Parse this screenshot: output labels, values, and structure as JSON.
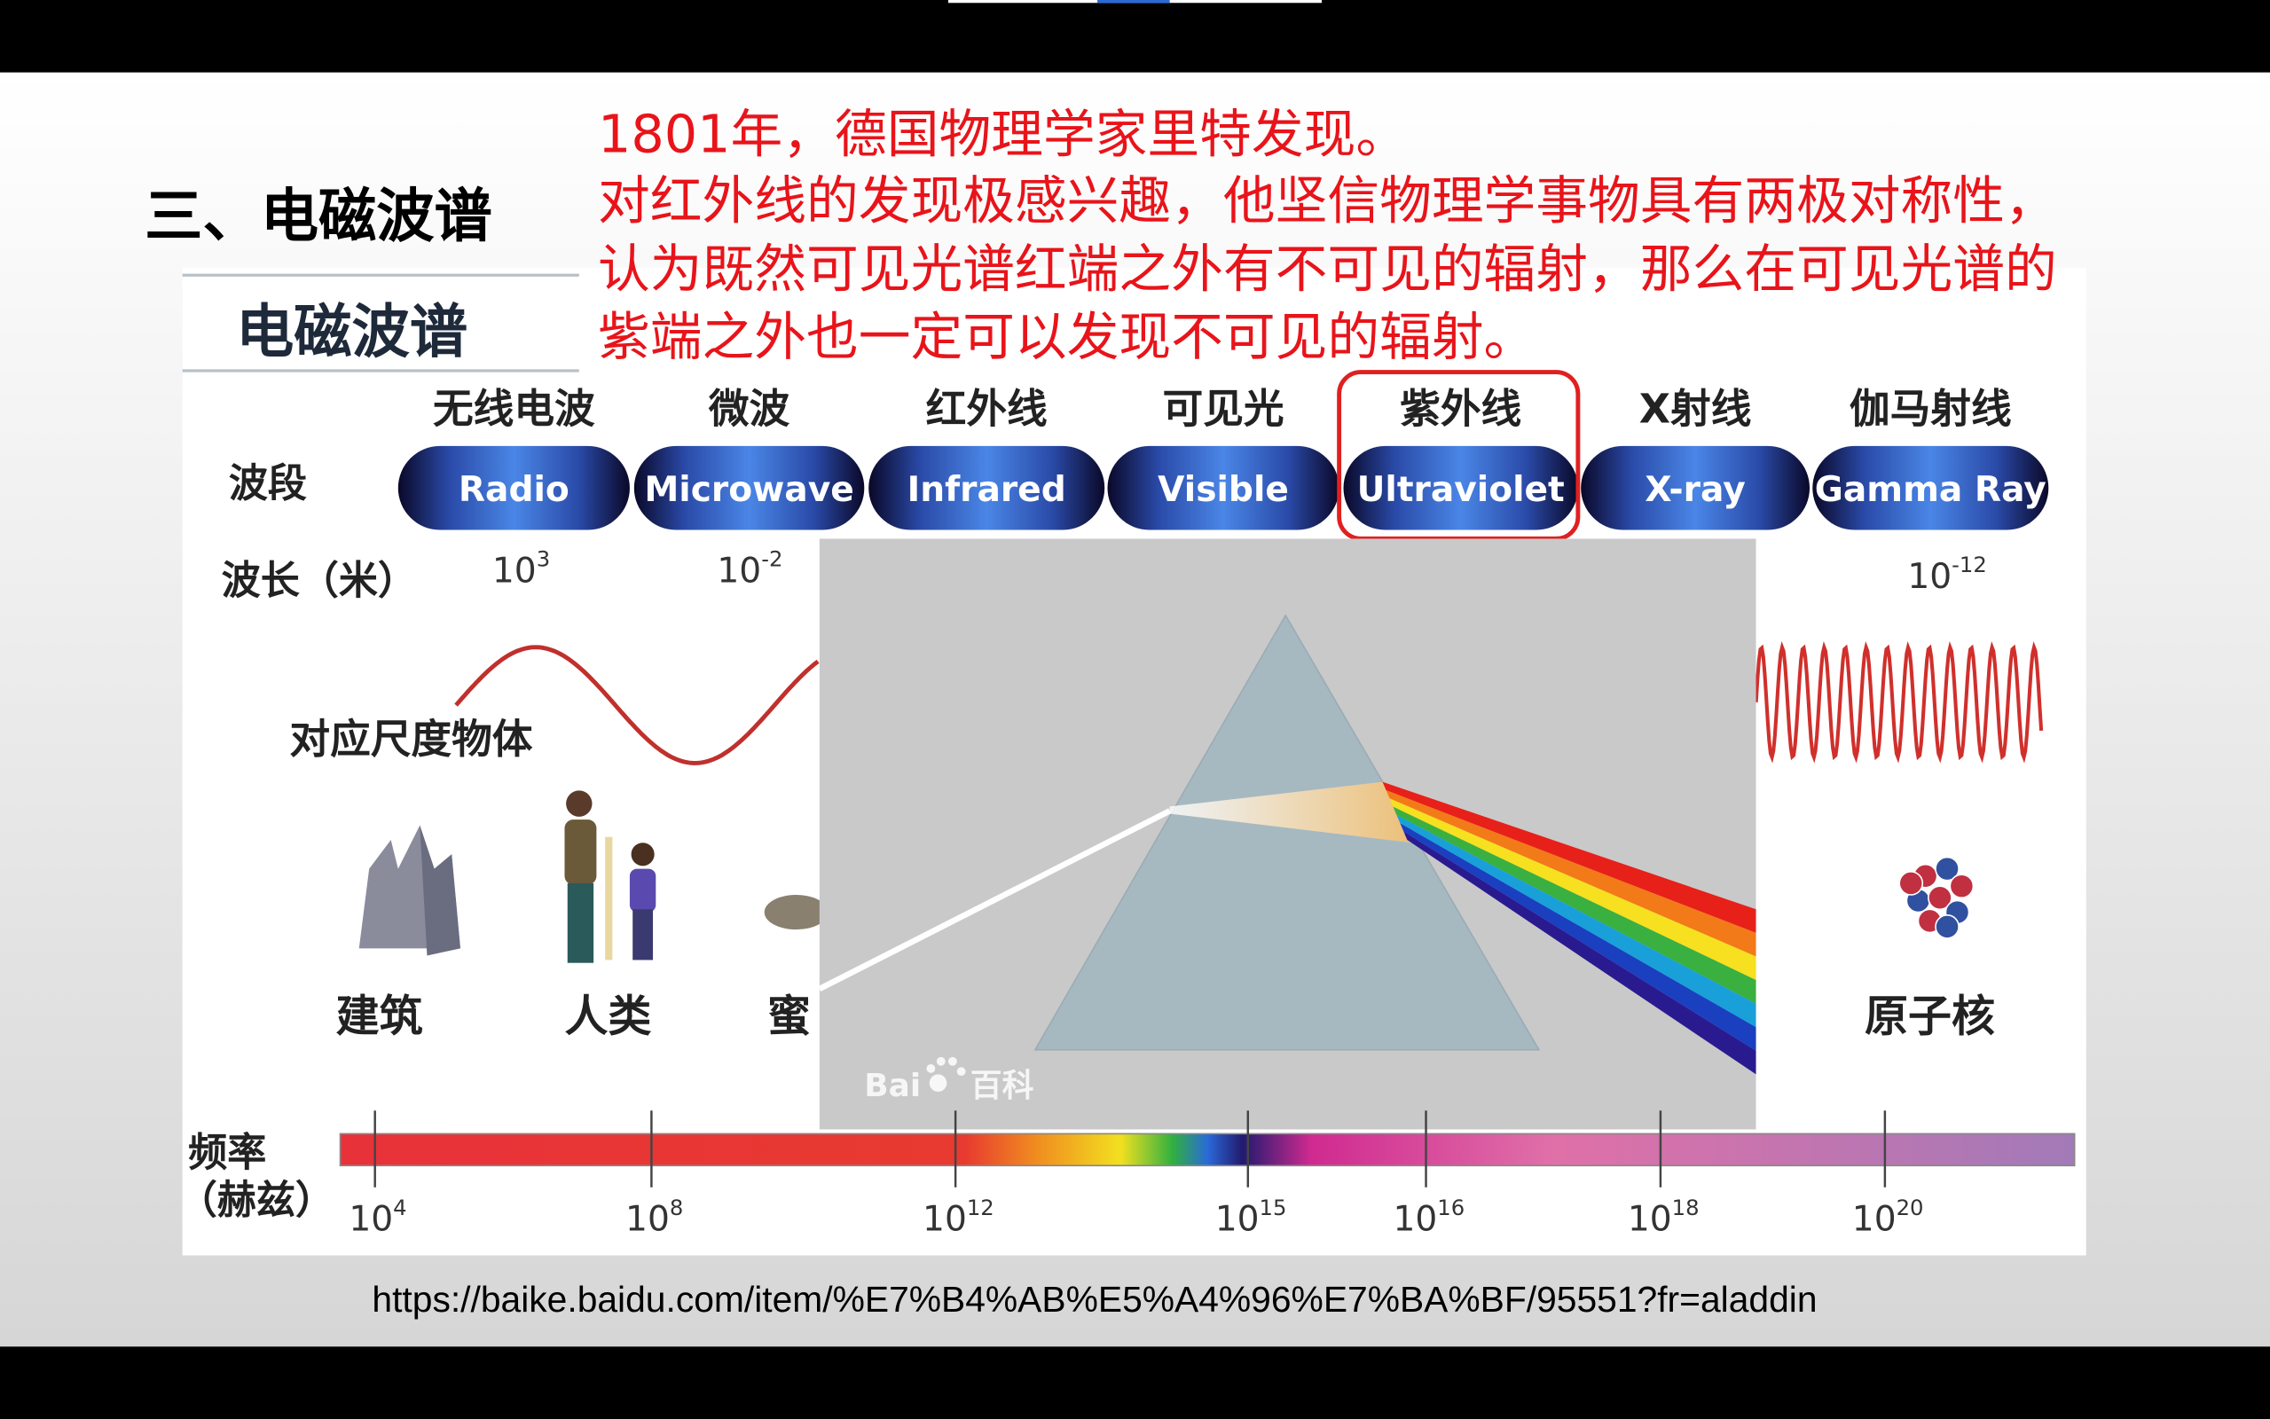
{
  "header": {
    "section_title": "三、电磁波谱",
    "notes": [
      "1801年，德国物理学家里特发现。",
      "对红外线的发现极感兴趣，他坚信物理学事物具有两极对称性，",
      "认为既然可见光谱红端之外有不可见的辐射，那么在可见光谱的",
      "紫端之外也一定可以发现不可见的辐射。"
    ]
  },
  "figure": {
    "title": "电磁波谱",
    "band_heading": "波段",
    "wavelength_heading": "波长（米）",
    "bands": [
      {
        "name_zh": "无线电波",
        "name_en": "Radio"
      },
      {
        "name_zh": "微波",
        "name_en": "Microwave"
      },
      {
        "name_zh": "红外线",
        "name_en": "Infrared"
      },
      {
        "name_zh": "可见光",
        "name_en": "Visible"
      },
      {
        "name_zh": "紫外线",
        "name_en": "Ultraviolet"
      },
      {
        "name_zh": "X射线",
        "name_en": "X-ray"
      },
      {
        "name_zh": "伽马射线",
        "name_en": "Gamma Ray"
      }
    ],
    "wavelengths": [
      {
        "base": "10",
        "exp": "3"
      },
      {
        "base": "10",
        "exp": "-2"
      },
      {
        "base": "10",
        "exp": "-12"
      }
    ],
    "objects_heading": "对应尺度物体",
    "objects": [
      "建筑",
      "人类",
      "蜜",
      "原子核"
    ],
    "frequency_label": "频率",
    "frequency_unit": "（赫兹）",
    "frequencies": [
      {
        "base": "10",
        "exp": "4"
      },
      {
        "base": "10",
        "exp": "8"
      },
      {
        "base": "10",
        "exp": "12"
      },
      {
        "base": "10",
        "exp": "15"
      },
      {
        "base": "10",
        "exp": "16"
      },
      {
        "base": "10",
        "exp": "18"
      },
      {
        "base": "10",
        "exp": "20"
      }
    ],
    "watermark": {
      "left": "Bai",
      "right": "百科"
    }
  },
  "source_url": "https://baike.baidu.com/item/%E7%B4%AB%E5%A4%96%E7%BA%BF/95551?fr=aladdin"
}
